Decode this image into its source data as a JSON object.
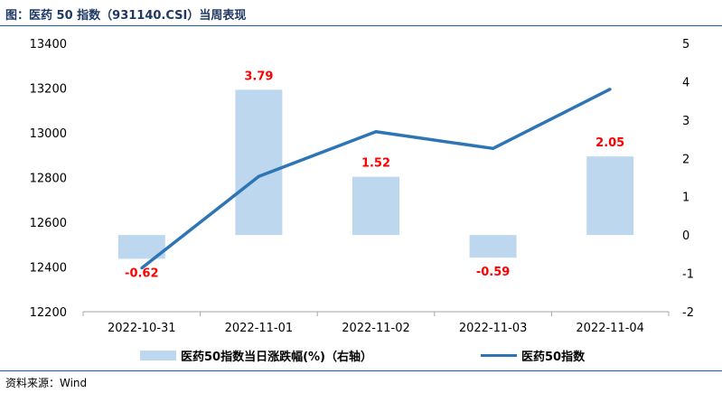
{
  "header": {
    "title": "图：医药 50 指数（931140.CSI）当周表现"
  },
  "footer": {
    "source": "资料来源：Wind"
  },
  "colors": {
    "bar": "#bdd7ee",
    "line": "#2e75b6",
    "label": "#ff0000",
    "title": "#1f3864",
    "rule": "#1f5aa6"
  },
  "chart_data": {
    "type": "bar+line",
    "categories": [
      "2022-10-31",
      "2022-11-01",
      "2022-11-02",
      "2022-11-03",
      "2022-11-04"
    ],
    "series": [
      {
        "name": "医药50指数当日涨跌幅(%)（右轴）",
        "type": "bar",
        "axis": "right",
        "values": [
          -0.62,
          3.79,
          1.52,
          -0.59,
          2.05
        ]
      },
      {
        "name": "医药50指数",
        "type": "line",
        "axis": "left",
        "values": [
          12395,
          12805,
          13005,
          12930,
          13195
        ]
      }
    ],
    "bar_labels": [
      "-0.62",
      "3.79",
      "1.52",
      "-0.59",
      "2.05"
    ],
    "y_left": {
      "ylim": [
        12200,
        13400
      ],
      "ticks": [
        "12200",
        "12400",
        "12600",
        "12800",
        "13000",
        "13200",
        "13400"
      ]
    },
    "y_right": {
      "ylim": [
        -2,
        5
      ],
      "ticks": [
        "-2",
        "-1",
        "0",
        "1",
        "2",
        "3",
        "4",
        "5"
      ]
    },
    "legend": {
      "bar_label": "医药50指数当日涨跌幅(%)（右轴）",
      "line_label": "医药50指数",
      "position": "bottom"
    }
  }
}
